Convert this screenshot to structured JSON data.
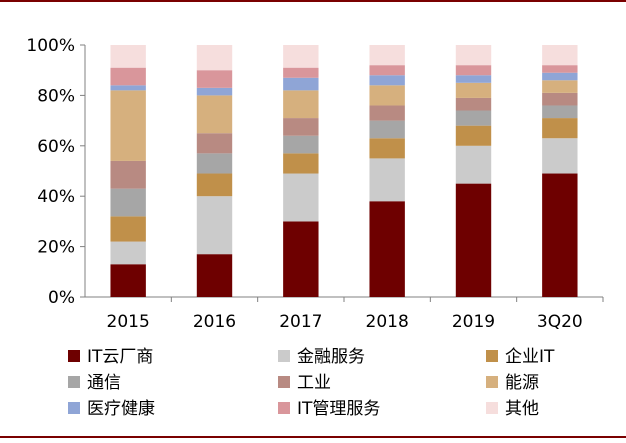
{
  "chart_data": {
    "type": "bar",
    "stacked": true,
    "normalized": true,
    "title": "",
    "xlabel": "",
    "ylabel": "",
    "ylim": [
      0,
      100
    ],
    "yticks": [
      "0%",
      "20%",
      "40%",
      "60%",
      "80%",
      "100%"
    ],
    "categories": [
      "2015",
      "2016",
      "2017",
      "2018",
      "2019",
      "3Q20"
    ],
    "series": [
      {
        "name": "IT云厂商",
        "color": "#6e0000",
        "values": [
          13,
          17,
          30,
          38,
          45,
          49
        ]
      },
      {
        "name": "金融服务",
        "color": "#cbcbcb",
        "values": [
          9,
          23,
          19,
          17,
          15,
          14
        ]
      },
      {
        "name": "企业IT",
        "color": "#c0904a",
        "values": [
          10,
          9,
          8,
          8,
          8,
          8
        ]
      },
      {
        "name": "通信",
        "color": "#a6a6a6",
        "values": [
          11,
          8,
          7,
          7,
          6,
          5
        ]
      },
      {
        "name": "工业",
        "color": "#b88a82",
        "values": [
          11,
          8,
          7,
          6,
          5,
          5
        ]
      },
      {
        "name": "能源",
        "color": "#d6b07e",
        "values": [
          28,
          15,
          11,
          8,
          6,
          5
        ]
      },
      {
        "name": "医疗健康",
        "color": "#8fa5d6",
        "values": [
          2,
          3,
          5,
          4,
          3,
          3
        ]
      },
      {
        "name": "IT管理服务",
        "color": "#d9969b",
        "values": [
          7,
          7,
          4,
          4,
          4,
          3
        ]
      },
      {
        "name": "其他",
        "color": "#f6dedd",
        "values": [
          9,
          10,
          9,
          8,
          8,
          8
        ]
      }
    ],
    "legend": {
      "placement": "bottom",
      "columns": 3
    },
    "grid": false
  }
}
